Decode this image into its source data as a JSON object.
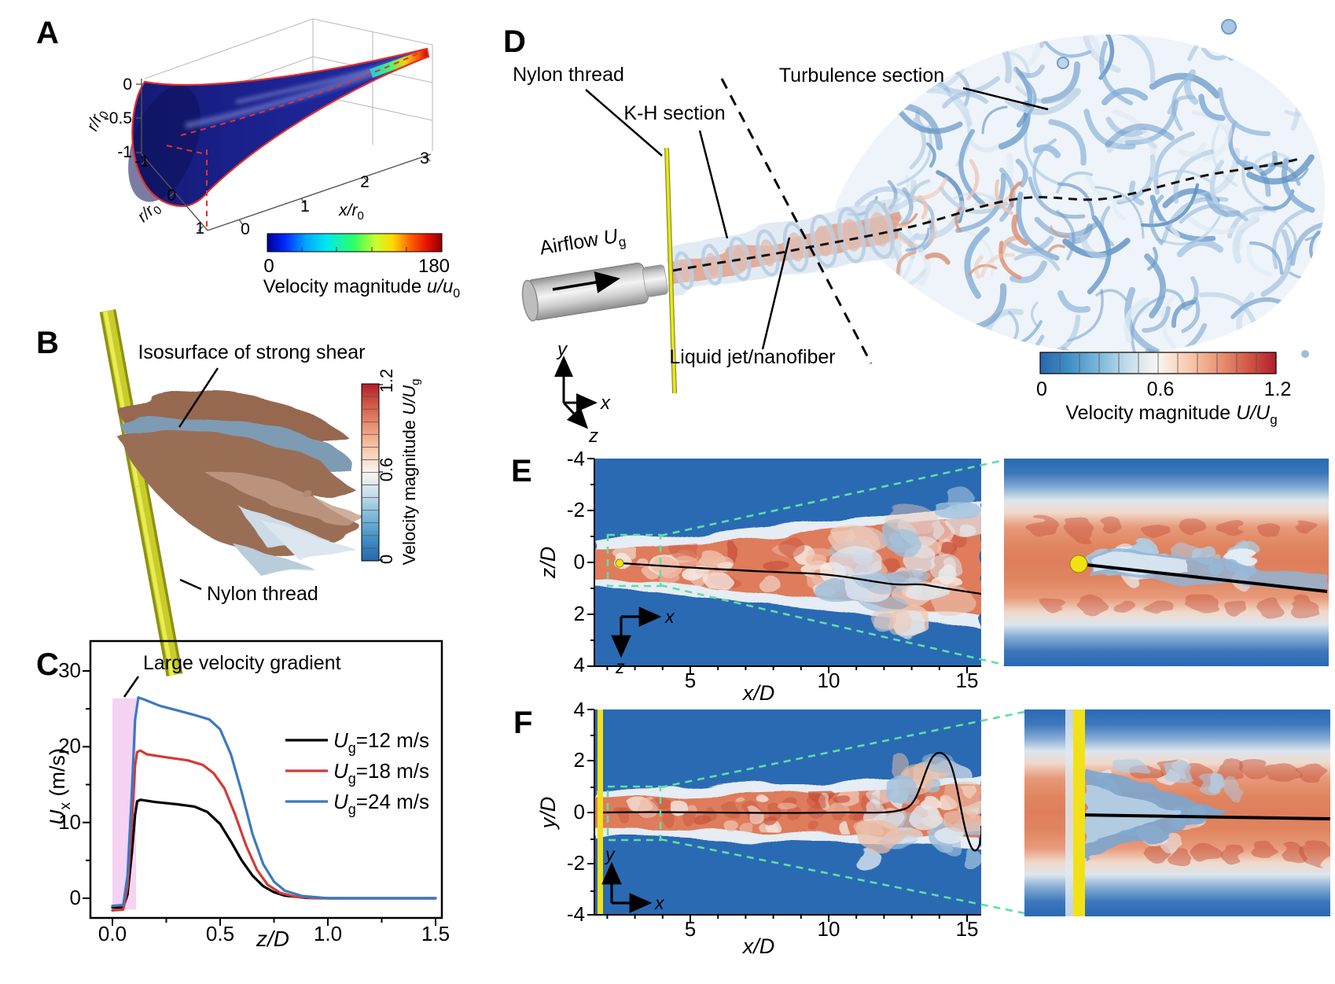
{
  "figure": {
    "kind": "multi-panel scientific figure",
    "panels": [
      "A",
      "B",
      "C",
      "D",
      "E",
      "F"
    ]
  },
  "panelA": {
    "label": "A",
    "vaxis": {
      "label_var": "r/r",
      "label_sub": "0",
      "ticks": [
        "0",
        "-0.5",
        "-1"
      ]
    },
    "laxis": {
      "label_var": "r/r",
      "label_sub": "0",
      "ticks": [
        "-1",
        "0",
        "1"
      ]
    },
    "raxis": {
      "label_var": "x/r",
      "label_sub": "0",
      "ticks": [
        "0",
        "1",
        "2",
        "3"
      ]
    },
    "colorbar": {
      "tick_min": "0",
      "tick_max": "180",
      "label_pre": "Velocity magnitude ",
      "label_var": "u/u",
      "label_sub": "0"
    }
  },
  "panelB": {
    "label": "B",
    "callout_isosurface": "Isosurface of strong shear",
    "callout_thread": "Nylon thread",
    "colorbar": {
      "ticks": [
        "0",
        "0.6",
        "1.2"
      ],
      "label_pre": "Velocity magnitude ",
      "label_var": "U/U",
      "label_sub": "g"
    }
  },
  "panelC": {
    "label": "C",
    "annotation": "Large velocity gradient",
    "ylabel_var": "U",
    "ylabel_sub": "x",
    "ylabel_rest": " (m/s)",
    "xlabel": "z/D",
    "yticks": [
      "0",
      "10",
      "20",
      "30"
    ],
    "xticks": [
      "0.0",
      "0.5",
      "1.0",
      "1.5"
    ],
    "legend": [
      {
        "var": "U",
        "sub": "g",
        "rest": "=12 m/s",
        "color": "#000000"
      },
      {
        "var": "U",
        "sub": "g",
        "rest": "=18 m/s",
        "color": "#d23b35"
      },
      {
        "var": "U",
        "sub": "g",
        "rest": "=24 m/s",
        "color": "#3c79c0"
      }
    ]
  },
  "panelD": {
    "label": "D",
    "callout_thread": "Nylon thread",
    "callout_kh": "K-H section",
    "callout_turbulence": "Turbulence section",
    "callout_jet": "Liquid jet/nanofiber",
    "airflow_pre": "Airflow ",
    "airflow_var": "U",
    "airflow_sub": "g",
    "axes": {
      "x": "x",
      "y": "y",
      "z": "z"
    },
    "colorbar": {
      "ticks": [
        "0",
        "0.6",
        "1.2"
      ],
      "label_pre": "Velocity magnitude ",
      "label_var": "U/U",
      "label_sub": "g"
    }
  },
  "panelE": {
    "label": "E",
    "ylabel": "z/D",
    "xlabel": "x/D",
    "yticks": [
      "-4",
      "-2",
      "0",
      "2",
      "4"
    ],
    "xticks": [
      "5",
      "10",
      "15"
    ],
    "axes": {
      "x": "x",
      "z": "z"
    }
  },
  "panelF": {
    "label": "F",
    "ylabel": "y/D",
    "xlabel": "x/D",
    "yticks": [
      "4",
      "2",
      "0",
      "-2",
      "-4"
    ],
    "xticks": [
      "5",
      "10",
      "15"
    ],
    "axes": {
      "x": "x",
      "y": "y"
    }
  },
  "colors": {
    "background": "#ffffff",
    "deep_blue": "#2a6ab3",
    "salmon_core": "#de7c5c",
    "dark_red_spot": "#c14a32",
    "green_dash": "#5ddfa4",
    "yellow_thread": "#f2e117",
    "olive_thread": "#c9cd2a",
    "pink_region": "#f4d3f3",
    "legend_black": "#000000",
    "legend_red": "#d23b35",
    "legend_blue": "#3c79c0",
    "rdbu_low": "#2a66ac",
    "rdbu_high": "#b11f2c",
    "jet_low": "#000090",
    "jet_high": "#900000"
  },
  "chart_data": [
    {
      "panel": "C",
      "type": "line",
      "xlabel": "z/D",
      "ylabel": "U_x (m/s)",
      "xlim": [
        -0.1,
        1.55
      ],
      "ylim": [
        -2.7,
        34
      ],
      "xticks": [
        0.0,
        0.5,
        1.0,
        1.5
      ],
      "yticks": [
        0,
        10,
        20,
        30
      ],
      "grid": false,
      "legend_position": "right-middle",
      "annotation": "Large velocity gradient",
      "highlight_region": {
        "x": [
          0.0,
          0.11
        ],
        "y": [
          -1.5,
          26.4
        ],
        "color": "#f4d3f3"
      },
      "series": [
        {
          "name": "U_g=12 m/s",
          "color": "#000000",
          "points": [
            [
              0,
              -1.2
            ],
            [
              0.05,
              -1.2
            ],
            [
              0.07,
              0.5
            ],
            [
              0.09,
              6
            ],
            [
              0.105,
              11
            ],
            [
              0.115,
              12.8
            ],
            [
              0.13,
              13
            ],
            [
              0.2,
              12.7
            ],
            [
              0.3,
              12.4
            ],
            [
              0.38,
              12.1
            ],
            [
              0.44,
              11.4
            ],
            [
              0.5,
              9.8
            ],
            [
              0.55,
              7.5
            ],
            [
              0.6,
              5
            ],
            [
              0.65,
              3
            ],
            [
              0.7,
              1.6
            ],
            [
              0.75,
              0.8
            ],
            [
              0.8,
              0.35
            ],
            [
              0.9,
              0.05
            ],
            [
              1.0,
              0
            ],
            [
              1.5,
              0
            ]
          ]
        },
        {
          "name": "U_g=18 m/s",
          "color": "#d23b35",
          "points": [
            [
              0,
              -1.6
            ],
            [
              0.05,
              -1.5
            ],
            [
              0.07,
              1.5
            ],
            [
              0.09,
              10
            ],
            [
              0.105,
              17.5
            ],
            [
              0.115,
              19.3
            ],
            [
              0.13,
              19.5
            ],
            [
              0.16,
              19
            ],
            [
              0.25,
              18.6
            ],
            [
              0.35,
              18.2
            ],
            [
              0.42,
              17.6
            ],
            [
              0.47,
              16.5
            ],
            [
              0.52,
              14.5
            ],
            [
              0.57,
              11
            ],
            [
              0.62,
              7
            ],
            [
              0.67,
              3.8
            ],
            [
              0.72,
              1.8
            ],
            [
              0.78,
              0.7
            ],
            [
              0.85,
              0.2
            ],
            [
              0.95,
              0
            ],
            [
              1.5,
              0
            ]
          ]
        },
        {
          "name": "U_g=24 m/s",
          "color": "#3c79c0",
          "points": [
            [
              0,
              -1.0
            ],
            [
              0.05,
              -0.9
            ],
            [
              0.07,
              3
            ],
            [
              0.09,
              14
            ],
            [
              0.105,
              23.5
            ],
            [
              0.12,
              26.5
            ],
            [
              0.15,
              26.2
            ],
            [
              0.22,
              25.4
            ],
            [
              0.3,
              24.8
            ],
            [
              0.38,
              24.2
            ],
            [
              0.45,
              23.6
            ],
            [
              0.5,
              22.3
            ],
            [
              0.55,
              19
            ],
            [
              0.6,
              14
            ],
            [
              0.65,
              8.5
            ],
            [
              0.7,
              4.5
            ],
            [
              0.75,
              2.2
            ],
            [
              0.8,
              1
            ],
            [
              0.88,
              0.3
            ],
            [
              1.0,
              0
            ],
            [
              1.5,
              0
            ]
          ]
        }
      ]
    },
    {
      "panel": "E",
      "type": "heatmap",
      "xlabel": "x/D",
      "ylabel": "z/D",
      "xticks": [
        5,
        10,
        15
      ],
      "yticks": [
        -4,
        -2,
        0,
        2,
        4
      ],
      "value_label": "Velocity magnitude U/U_g",
      "value_range": [
        0,
        1.2
      ],
      "colormap": "blue-white-red",
      "description": "Instantaneous air-jet velocity field in the x-z plane; red jet core spreads downstream, black line is the liquid jet/nanofiber trajectory, yellow dot is the nylon thread cross-section; green dashed box is magnified in the right inset",
      "overlays": [
        "fiber trajectory (black line)",
        "nylon thread cross-section (yellow dot)",
        "zoom region (green dashed)"
      ]
    },
    {
      "panel": "F",
      "type": "heatmap",
      "xlabel": "x/D",
      "ylabel": "y/D",
      "xticks": [
        5,
        10,
        15
      ],
      "yticks": [
        4,
        2,
        0,
        -2,
        -4
      ],
      "value_label": "Velocity magnitude U/U_g",
      "value_range": [
        0,
        1.2
      ],
      "colormap": "blue-white-red",
      "description": "Instantaneous air-jet velocity field in the x-y plane; vertical yellow line is the nylon thread, black line is the fiber trajectory; green dashed box is magnified in the right inset",
      "overlays": [
        "fiber trajectory (black line)",
        "nylon thread (yellow line)",
        "zoom region (green dashed)"
      ]
    },
    {
      "panel": "A",
      "type": "surface3d",
      "value_label": "Velocity magnitude u/u_0",
      "value_range": [
        0,
        180
      ],
      "colormap": "jet",
      "axes": {
        "x": "x/r_0 from 0 to 3",
        "r_left": "r/r_0 from -1 to 1",
        "vertical": "r/r_0 from 0 to -1"
      },
      "description": "Funnel-shaped 3D velocity surface, dark blue body with rainbow high-velocity tip and red rim outline with red dashed centerline"
    },
    {
      "panel": "B",
      "type": "isosurface3d",
      "value_label": "Velocity magnitude U/U_g",
      "value_range": [
        0,
        1.2
      ],
      "colormap": "blue-white-red",
      "description": "Isosurface of strong shear wrapped around an inclined yellow nylon thread"
    },
    {
      "panel": "D",
      "type": "isosurface3d",
      "value_label": "Velocity magnitude U/U_g",
      "value_range": [
        0,
        1.2
      ],
      "colormap": "blue-white-red",
      "sections": [
        "K-H section",
        "Turbulence section"
      ],
      "description": "3D vortex structures of the air jet: nozzle with airflow Ug, vertical nylon thread, Kelvin-Helmholtz ring vortices, then a turbulent cloud of blue vortex tubes; black dashed line is the liquid jet/nanofiber"
    }
  ]
}
